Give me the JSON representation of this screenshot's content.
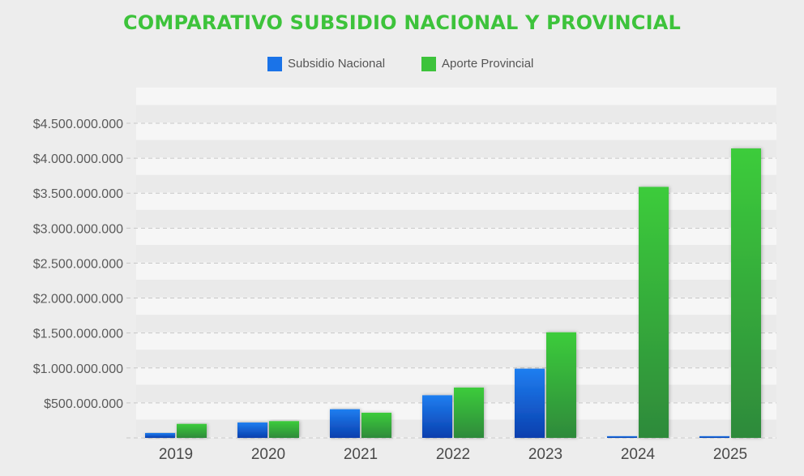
{
  "chart_data": {
    "type": "bar",
    "title": "COMPARATIVO SUBSIDIO NACIONAL Y PROVINCIAL",
    "xlabel": "",
    "ylabel": "",
    "categories": [
      "2019",
      "2020",
      "2021",
      "2022",
      "2023",
      "2024",
      "2025"
    ],
    "series": [
      {
        "name": "Subsidio Nacional",
        "color": "#1a73e8",
        "values": [
          70000000,
          220000000,
          410000000,
          610000000,
          990000000,
          25000000,
          25000000
        ]
      },
      {
        "name": "Aporte Provincial",
        "color": "#3dc33b",
        "values": [
          200000000,
          240000000,
          360000000,
          720000000,
          1510000000,
          3590000000,
          4140000000
        ]
      }
    ],
    "ylim": [
      0,
      4500000000
    ],
    "y_tick_values": [
      500000000,
      1000000000,
      1500000000,
      2000000000,
      2500000000,
      3000000000,
      3500000000,
      4000000000,
      4500000000
    ],
    "y_tick_labels": [
      "$500.000.000",
      "$1.000.000.000",
      "$1.500.000.000",
      "$2.000.000.000",
      "$2.500.000.000",
      "$3.000.000.000",
      "$3.500.000.000",
      "$4.000.000.000",
      "$4.500.000.000"
    ],
    "grid": true,
    "legend_position": "top-center"
  }
}
